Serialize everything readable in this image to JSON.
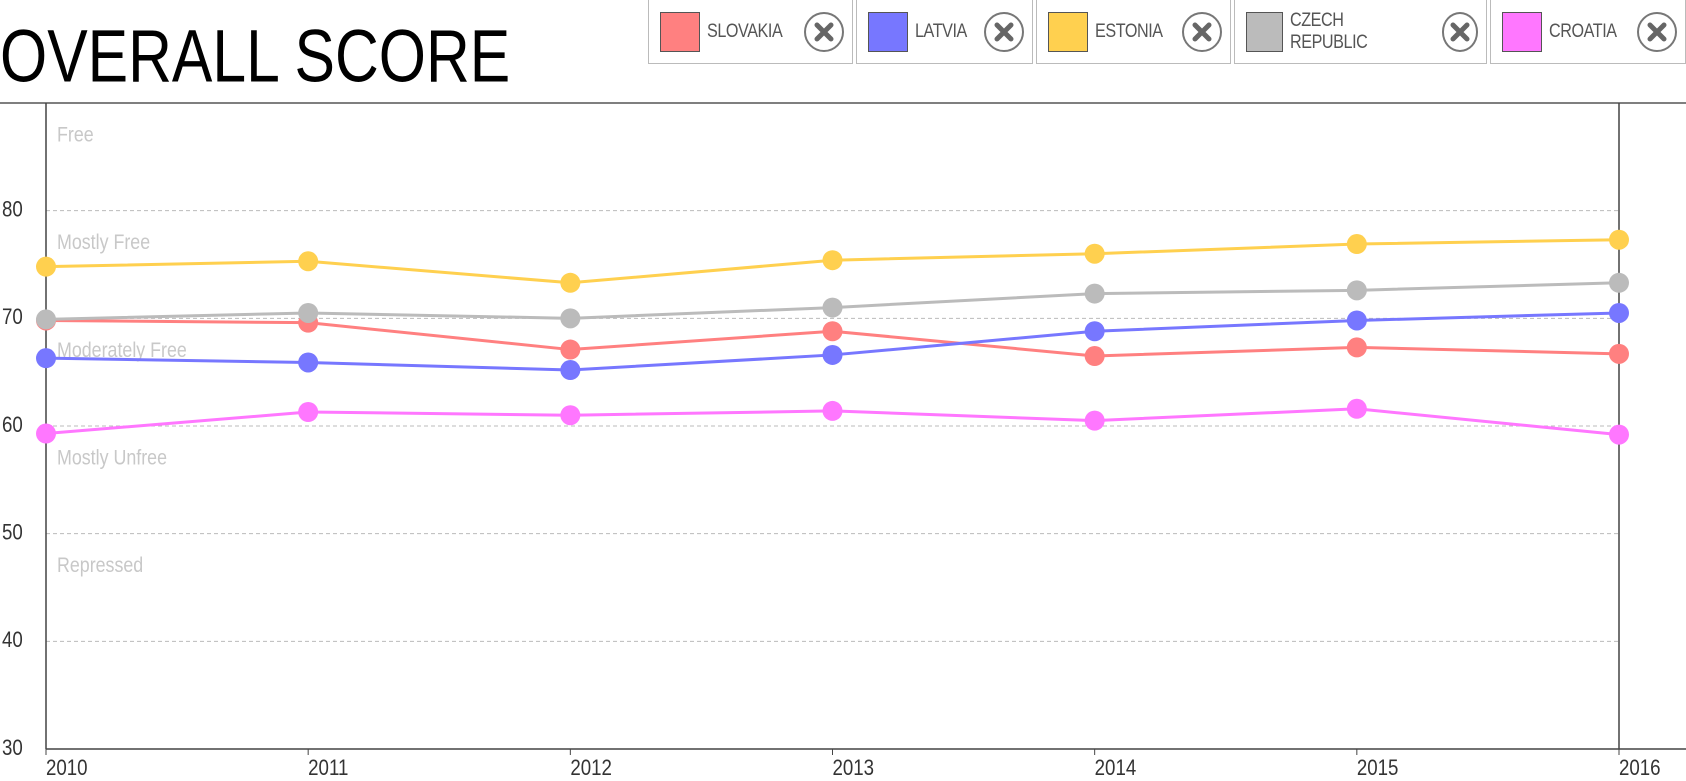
{
  "chart_data": {
    "type": "line",
    "title": "OVERALL SCORE",
    "categories": [
      "2010",
      "2011",
      "2012",
      "2013",
      "2014",
      "2015",
      "2016"
    ],
    "series": [
      {
        "name": "SLOVAKIA",
        "color": "#ff8080",
        "values": [
          69.8,
          69.6,
          67.1,
          68.8,
          66.5,
          67.3,
          66.7
        ]
      },
      {
        "name": "LATVIA",
        "color": "#7777ff",
        "values": [
          66.3,
          65.9,
          65.2,
          66.6,
          68.8,
          69.8,
          70.5
        ]
      },
      {
        "name": "ESTONIA",
        "color": "#ffd04f",
        "values": [
          74.8,
          75.3,
          73.3,
          75.4,
          76.0,
          76.9,
          77.3
        ]
      },
      {
        "name": "CZECH REPUBLIC",
        "color": "#bbbbbb",
        "values": [
          69.9,
          70.5,
          70.0,
          71.0,
          72.3,
          72.6,
          73.3
        ]
      },
      {
        "name": "CROATIA",
        "color": "#ff77ff",
        "values": [
          59.3,
          61.3,
          61.0,
          61.4,
          60.5,
          61.6,
          59.2
        ]
      }
    ],
    "bands": [
      {
        "label": "Free",
        "top": 90
      },
      {
        "label": "Mostly Free",
        "top": 80
      },
      {
        "label": "Moderately Free",
        "top": 70
      },
      {
        "label": "Mostly Unfree",
        "top": 60
      },
      {
        "label": "Repressed",
        "top": 50
      }
    ],
    "ylim": [
      30,
      90
    ],
    "yticks": [
      30,
      40,
      50,
      60,
      70,
      80
    ],
    "grid": true
  }
}
